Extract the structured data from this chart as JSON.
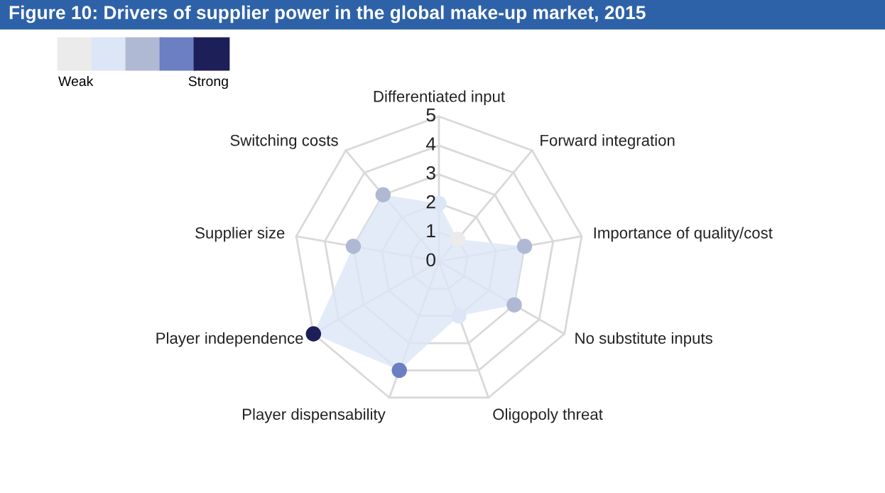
{
  "chart_data": {
    "type": "radar",
    "title": "Figure 10: Drivers of supplier power in the global make-up market, 2015",
    "categories": [
      "Differentiated input",
      "Forward integration",
      "Importance of quality/cost",
      "No substitute inputs",
      "Oligopoly threat",
      "Player dispensability",
      "Player independence",
      "Supplier size",
      "Switching costs"
    ],
    "series": [
      {
        "color": "#dce6f6",
        "values": [
          2,
          1,
          3,
          3,
          2,
          4,
          5,
          3,
          3
        ],
        "colors": [
          "#dce6f6",
          "#ebebeb",
          "#b0b9d3",
          "#b0b9d3",
          "#dce6f6",
          "#6b7fc2",
          "#1c1f58",
          "#b0b9d3",
          "#b0b9d3"
        ]
      }
    ],
    "ylim": [
      0,
      5
    ],
    "yticks": [
      0,
      1,
      2,
      3,
      4,
      5
    ],
    "grid": true,
    "marker": "circle",
    "annotations": [
      "Weak",
      "Strong"
    ]
  }
}
